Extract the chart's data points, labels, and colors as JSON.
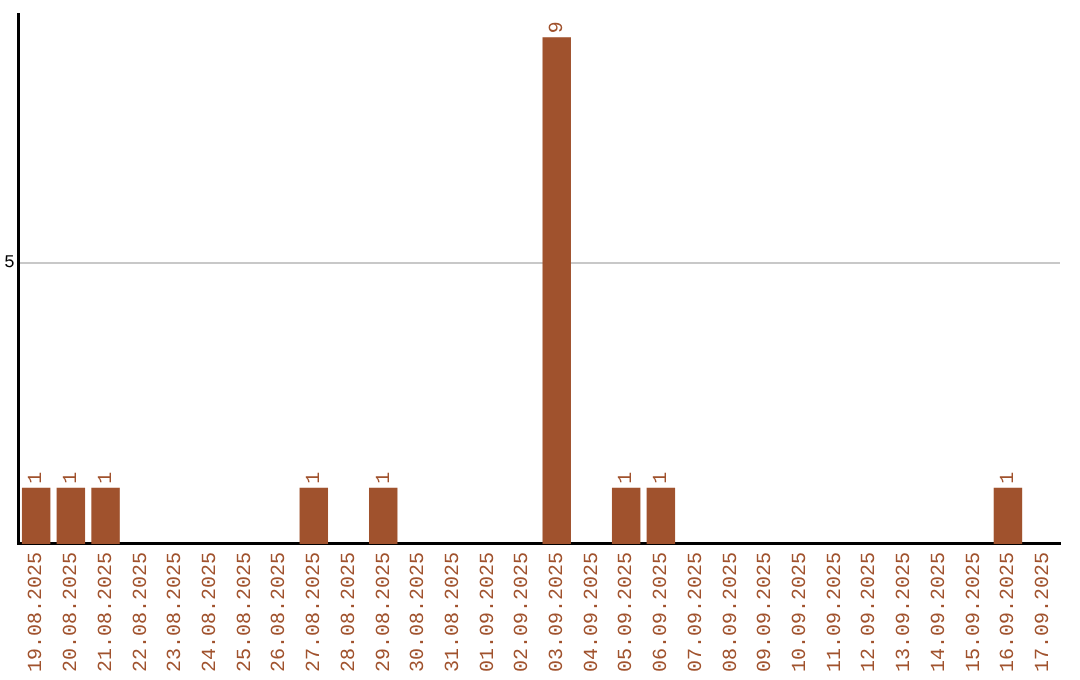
{
  "chart_data": {
    "type": "bar",
    "categories": [
      "19.08.2025",
      "20.08.2025",
      "21.08.2025",
      "22.08.2025",
      "23.08.2025",
      "24.08.2025",
      "25.08.2025",
      "26.08.2025",
      "27.08.2025",
      "28.08.2025",
      "29.08.2025",
      "30.08.2025",
      "31.08.2025",
      "01.09.2025",
      "02.09.2025",
      "03.09.2025",
      "04.09.2025",
      "05.09.2025",
      "06.09.2025",
      "07.09.2025",
      "08.09.2025",
      "09.09.2025",
      "10.09.2025",
      "11.09.2025",
      "12.09.2025",
      "13.09.2025",
      "14.09.2025",
      "15.09.2025",
      "16.09.2025",
      "17.09.2025"
    ],
    "values": [
      1,
      1,
      1,
      0,
      0,
      0,
      0,
      0,
      1,
      0,
      1,
      0,
      0,
      0,
      0,
      9,
      0,
      1,
      1,
      0,
      0,
      0,
      0,
      0,
      0,
      0,
      0,
      0,
      1,
      0
    ],
    "color": "#a0522d",
    "value_labels": [
      "1",
      "1",
      "1",
      null,
      null,
      null,
      null,
      null,
      "1",
      null,
      "1",
      null,
      null,
      null,
      null,
      "9",
      null,
      "1",
      "1",
      null,
      null,
      null,
      null,
      null,
      null,
      null,
      null,
      null,
      "1",
      null
    ],
    "ylim": [
      0,
      9.4
    ],
    "yticks": [
      5
    ],
    "grid": "y"
  }
}
